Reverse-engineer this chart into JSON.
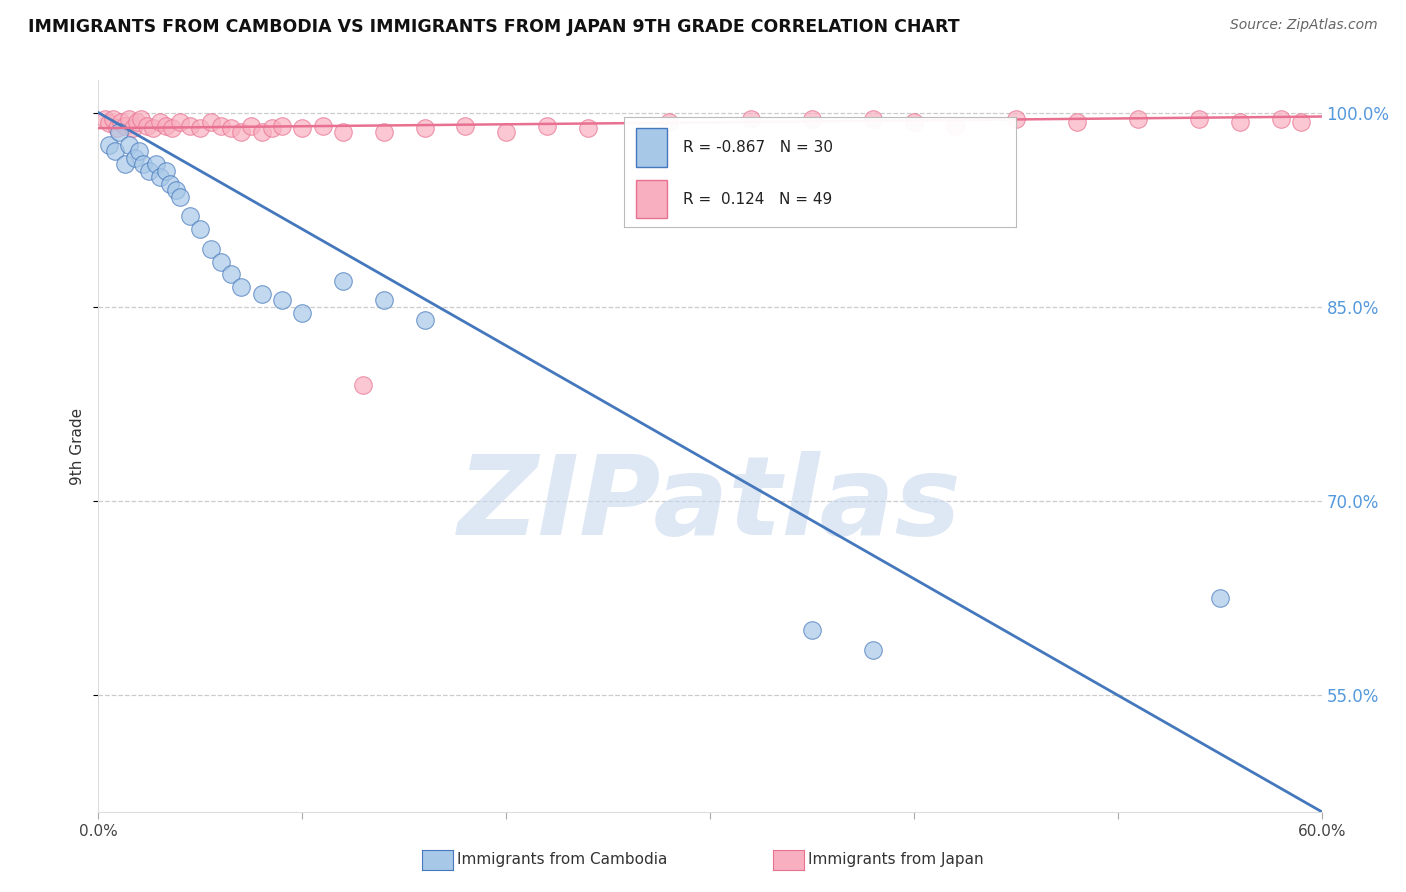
{
  "title": "IMMIGRANTS FROM CAMBODIA VS IMMIGRANTS FROM JAPAN 9TH GRADE CORRELATION CHART",
  "source": "Source: ZipAtlas.com",
  "xlabel_blue": "Immigrants from Cambodia",
  "xlabel_pink": "Immigrants from Japan",
  "ylabel": "9th Grade",
  "watermark": "ZIPatlas",
  "blue_R": -0.867,
  "blue_N": 30,
  "pink_R": 0.124,
  "pink_N": 49,
  "xlim": [
    0.0,
    0.6
  ],
  "ylim": [
    0.46,
    1.025
  ],
  "yticks": [
    1.0,
    0.85,
    0.7,
    0.55
  ],
  "ytick_labels": [
    "100.0%",
    "85.0%",
    "70.0%",
    "55.0%"
  ],
  "blue_color": "#a8c8e8",
  "blue_line_color": "#4477bb",
  "pink_color": "#f8b0c0",
  "pink_line_color": "#e87090",
  "grid_color": "#cccccc",
  "blue_scatter_x": [
    0.005,
    0.008,
    0.01,
    0.013,
    0.015,
    0.018,
    0.02,
    0.022,
    0.025,
    0.028,
    0.03,
    0.033,
    0.035,
    0.038,
    0.04,
    0.045,
    0.05,
    0.055,
    0.06,
    0.065,
    0.07,
    0.08,
    0.09,
    0.1,
    0.12,
    0.14,
    0.16,
    0.35,
    0.38,
    0.55
  ],
  "blue_scatter_y": [
    0.975,
    0.97,
    0.985,
    0.96,
    0.975,
    0.965,
    0.97,
    0.96,
    0.955,
    0.96,
    0.95,
    0.955,
    0.945,
    0.94,
    0.935,
    0.92,
    0.91,
    0.895,
    0.885,
    0.875,
    0.865,
    0.86,
    0.855,
    0.845,
    0.87,
    0.855,
    0.84,
    0.6,
    0.585,
    0.625
  ],
  "pink_scatter_x": [
    0.003,
    0.005,
    0.007,
    0.009,
    0.011,
    0.013,
    0.015,
    0.017,
    0.019,
    0.021,
    0.024,
    0.027,
    0.03,
    0.033,
    0.036,
    0.04,
    0.045,
    0.05,
    0.055,
    0.06,
    0.065,
    0.07,
    0.075,
    0.08,
    0.085,
    0.09,
    0.1,
    0.11,
    0.12,
    0.13,
    0.14,
    0.16,
    0.18,
    0.2,
    0.22,
    0.24,
    0.28,
    0.32,
    0.35,
    0.38,
    0.4,
    0.42,
    0.45,
    0.48,
    0.51,
    0.54,
    0.56,
    0.58,
    0.59
  ],
  "pink_scatter_y": [
    0.995,
    0.992,
    0.995,
    0.988,
    0.993,
    0.99,
    0.995,
    0.988,
    0.993,
    0.995,
    0.99,
    0.988,
    0.993,
    0.99,
    0.988,
    0.993,
    0.99,
    0.988,
    0.993,
    0.99,
    0.988,
    0.985,
    0.99,
    0.985,
    0.988,
    0.99,
    0.988,
    0.99,
    0.985,
    0.79,
    0.985,
    0.988,
    0.99,
    0.985,
    0.99,
    0.988,
    0.993,
    0.995,
    0.995,
    0.995,
    0.993,
    0.99,
    0.995,
    0.993,
    0.995,
    0.995,
    0.993,
    0.995,
    0.993
  ],
  "blue_trend_x": [
    0.0,
    0.6
  ],
  "blue_trend_y": [
    1.0,
    0.46
  ],
  "pink_trend_x": [
    0.0,
    0.6
  ],
  "pink_trend_y": [
    0.988,
    0.997
  ]
}
